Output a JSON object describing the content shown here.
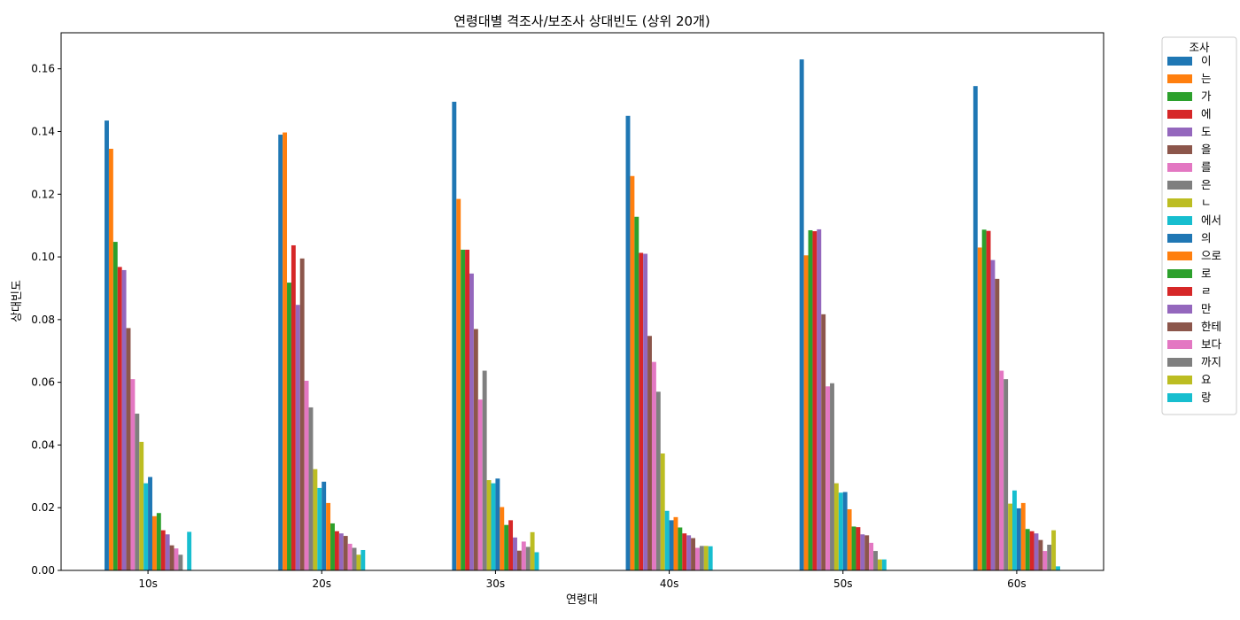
{
  "chart_data": {
    "type": "bar",
    "title": "연령대별 격조사/보조사 상대빈도 (상위 20개)",
    "xlabel": "연령대",
    "ylabel": "상대빈도",
    "categories": [
      "10s",
      "20s",
      "30s",
      "40s",
      "50s",
      "60s"
    ],
    "ylim": [
      0,
      0.1715
    ],
    "yticks": [
      "0.00",
      "0.02",
      "0.04",
      "0.06",
      "0.08",
      "0.10",
      "0.12",
      "0.14",
      "0.16"
    ],
    "grid": false,
    "legend_title": "조사",
    "legend_position": "outside-top-right",
    "series": [
      {
        "name": "이",
        "color": "#1f77b4",
        "values": [
          0.1435,
          0.139,
          0.1495,
          0.145,
          0.163,
          0.1545
        ]
      },
      {
        "name": "는",
        "color": "#ff7f0e",
        "values": [
          0.1345,
          0.1397,
          0.1185,
          0.1258,
          0.1005,
          0.103
        ]
      },
      {
        "name": "가",
        "color": "#2ca02c",
        "values": [
          0.1048,
          0.0918,
          0.1023,
          0.1128,
          0.1085,
          0.1087
        ]
      },
      {
        "name": "에",
        "color": "#d62728",
        "values": [
          0.0968,
          0.1037,
          0.1023,
          0.1013,
          0.1082,
          0.1083
        ]
      },
      {
        "name": "도",
        "color": "#9467bd",
        "values": [
          0.0958,
          0.0847,
          0.0947,
          0.101,
          0.1088,
          0.099
        ]
      },
      {
        "name": "을",
        "color": "#8c564b",
        "values": [
          0.0773,
          0.0995,
          0.077,
          0.0748,
          0.0817,
          0.093
        ]
      },
      {
        "name": "를",
        "color": "#e377c2",
        "values": [
          0.061,
          0.0605,
          0.0545,
          0.0665,
          0.0587,
          0.0637
        ]
      },
      {
        "name": "은",
        "color": "#7f7f7f",
        "values": [
          0.05,
          0.052,
          0.0637,
          0.057,
          0.0597,
          0.061
        ]
      },
      {
        "name": "ㄴ",
        "color": "#bcbd22",
        "values": [
          0.041,
          0.0323,
          0.0288,
          0.0373,
          0.0278,
          0.0213
        ]
      },
      {
        "name": "에서",
        "color": "#17becf",
        "values": [
          0.0278,
          0.0263,
          0.0278,
          0.019,
          0.0248,
          0.0255
        ]
      },
      {
        "name": "의",
        "color": "#1f77b4",
        "values": [
          0.0298,
          0.0283,
          0.0293,
          0.016,
          0.025,
          0.0198
        ]
      },
      {
        "name": "으로",
        "color": "#ff7f0e",
        "values": [
          0.0173,
          0.0215,
          0.0202,
          0.017,
          0.0195,
          0.0215
        ]
      },
      {
        "name": "로",
        "color": "#2ca02c",
        "values": [
          0.0183,
          0.015,
          0.0145,
          0.0137,
          0.014,
          0.0132
        ]
      },
      {
        "name": "ㄹ",
        "color": "#d62728",
        "values": [
          0.0128,
          0.0125,
          0.016,
          0.0118,
          0.0138,
          0.0125
        ]
      },
      {
        "name": "만",
        "color": "#9467bd",
        "values": [
          0.0115,
          0.0118,
          0.0105,
          0.0112,
          0.0115,
          0.0118
        ]
      },
      {
        "name": "한테",
        "color": "#8c564b",
        "values": [
          0.008,
          0.011,
          0.0063,
          0.0103,
          0.0112,
          0.0097
        ]
      },
      {
        "name": "보다",
        "color": "#e377c2",
        "values": [
          0.007,
          0.0085,
          0.0092,
          0.0072,
          0.0088,
          0.0062
        ]
      },
      {
        "name": "까지",
        "color": "#7f7f7f",
        "values": [
          0.005,
          0.0072,
          0.0075,
          0.0078,
          0.0062,
          0.0082
        ]
      },
      {
        "name": "요",
        "color": "#bcbd22",
        "values": [
          0.0,
          0.005,
          0.0122,
          0.0078,
          0.0035,
          0.0128
        ]
      },
      {
        "name": "랑",
        "color": "#17becf",
        "values": [
          0.0123,
          0.0065,
          0.0058,
          0.0077,
          0.0035,
          0.0013
        ]
      }
    ]
  }
}
